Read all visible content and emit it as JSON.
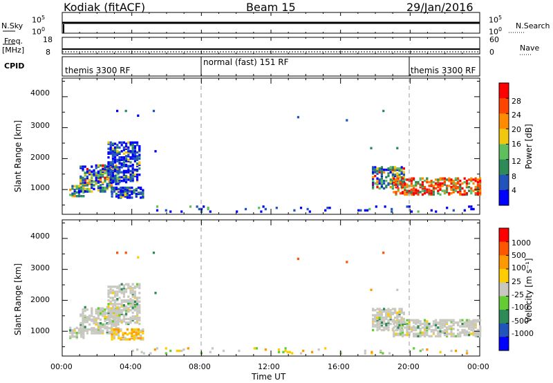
{
  "header": {
    "station": "Kodiak (fitACF)",
    "beam": "Beam 15",
    "date": "29/Jan/2016"
  },
  "top_panels": {
    "nsky_label": "N.Sky",
    "nsky_ticks": [
      "10^5",
      "10^0"
    ],
    "nsearch_label": "N.Search",
    "nsearch_ticks": [
      "10^5",
      "10^0"
    ],
    "freq_label_1": "Freq.",
    "freq_label_2": "[MHz]",
    "freq_ticks": [
      "18",
      "8"
    ],
    "nave_label": "Nave",
    "nave_ticks": [
      "60",
      "0"
    ],
    "cpid_label": "CPID",
    "modes": [
      {
        "label": "themis 3300 RF",
        "start_hour": 0,
        "end_hour": 8
      },
      {
        "label": "normal (fast) 151 RF",
        "start_hour": 8,
        "end_hour": 20
      },
      {
        "label": "themis 3300 RF",
        "start_hour": 20,
        "end_hour": 24
      }
    ]
  },
  "colors": {
    "power_scale": [
      "#0000ff",
      "#2255bb",
      "#2e8b57",
      "#5fbf5f",
      "#f2c80f",
      "#ff8c00",
      "#ff4500",
      "#ff0000"
    ],
    "velocity_scale": [
      "#0000ff",
      "#2255bb",
      "#2e8b57",
      "#66cc33",
      "#c8c8c0",
      "#ffcc00",
      "#ff9900",
      "#ff5500",
      "#ff0000"
    ],
    "ground_scatter": "#c8c8c0"
  },
  "chart_data": [
    {
      "type": "heatmap",
      "name": "",
      "xlabel": "",
      "ylabel": "Slant Range [km]",
      "ylim": [
        200,
        4600
      ],
      "xlim_hours": [
        0,
        24
      ],
      "y_ticks": [
        "1000",
        "2000",
        "3000",
        "4000"
      ],
      "colorbar_label": "Power [dB]",
      "colorbar_ticks": [
        "28",
        "24",
        "20",
        "16",
        "12",
        "8",
        "4"
      ],
      "regions": [
        {
          "t0": 0.4,
          "t1": 1.2,
          "r0": 750,
          "r1": 1100,
          "level": "mixed"
        },
        {
          "t0": 1.0,
          "t1": 3.2,
          "r0": 900,
          "r1": 1750,
          "level": "mixed"
        },
        {
          "t0": 2.6,
          "t1": 4.4,
          "r0": 1200,
          "r1": 2500,
          "level": "weak"
        },
        {
          "t0": 2.8,
          "t1": 4.6,
          "r0": 700,
          "r1": 1050,
          "level": "weak"
        },
        {
          "t0": 17.8,
          "t1": 19.6,
          "r0": 1000,
          "r1": 1700,
          "level": "mixed"
        },
        {
          "t0": 19.0,
          "t1": 24.0,
          "r0": 800,
          "r1": 1350,
          "level": "strong"
        },
        {
          "t0": 4.0,
          "t1": 24.0,
          "r0": 250,
          "r1": 450,
          "level": "sparse"
        }
      ]
    },
    {
      "type": "heatmap",
      "name": "",
      "xlabel": "Time UT",
      "ylabel": "Slant Range [km]",
      "ylim": [
        200,
        4600
      ],
      "xlim_hours": [
        0,
        24
      ],
      "x_ticks": [
        "00:00",
        "04:00",
        "08:00",
        "12:00",
        "16:00",
        "20:00",
        "00:00"
      ],
      "y_ticks": [
        "1000",
        "2000",
        "3000",
        "4000"
      ],
      "colorbar_label": "Velocity [m s⁻¹]",
      "colorbar_ticks": [
        "1000",
        "500",
        "100",
        "25",
        "-25",
        "-100",
        "-500",
        "-1000"
      ],
      "regions": [
        {
          "t0": 0.4,
          "t1": 1.2,
          "r0": 750,
          "r1": 1100,
          "level": "ground"
        },
        {
          "t0": 1.0,
          "t1": 3.2,
          "r0": 900,
          "r1": 1750,
          "level": "ground"
        },
        {
          "t0": 2.6,
          "t1": 4.4,
          "r0": 1200,
          "r1": 2500,
          "level": "ground"
        },
        {
          "t0": 2.8,
          "t1": 4.6,
          "r0": 700,
          "r1": 1050,
          "level": "orange"
        },
        {
          "t0": 17.8,
          "t1": 19.6,
          "r0": 1000,
          "r1": 1700,
          "level": "ground"
        },
        {
          "t0": 19.0,
          "t1": 24.0,
          "r0": 800,
          "r1": 1350,
          "level": "ground"
        },
        {
          "t0": 4.0,
          "t1": 24.0,
          "r0": 250,
          "r1": 450,
          "level": "sparse"
        }
      ]
    }
  ]
}
